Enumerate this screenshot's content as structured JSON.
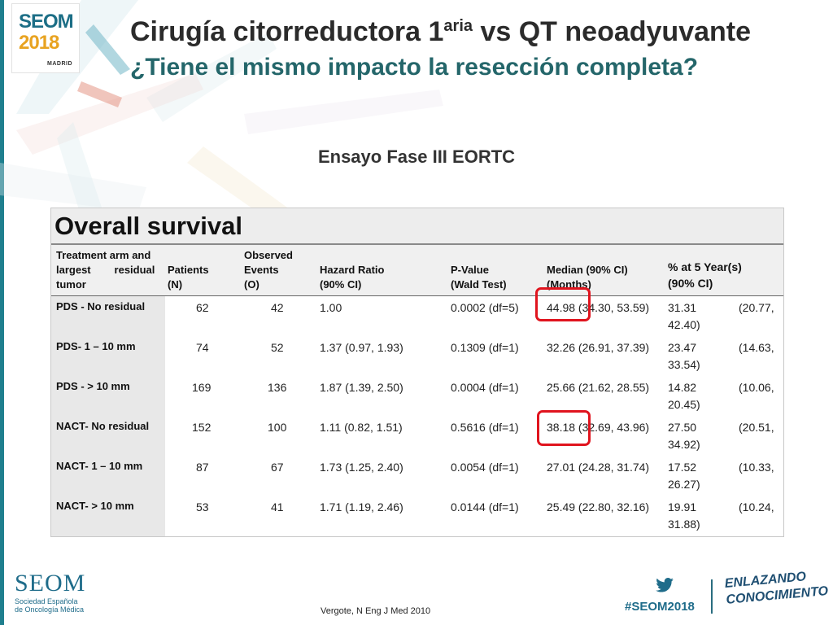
{
  "logo": {
    "name": "SEOM",
    "year": "2018",
    "city": "MADRID"
  },
  "header": {
    "title_main": "Cirugía citorreductora 1",
    "title_sup": "aria",
    "title_end": " vs QT neoadyuvante",
    "subtitle": "¿Tiene el mismo impacto la resección completa?"
  },
  "section_title": "Ensayo Fase III EORTC",
  "table": {
    "title": "Overall survival",
    "headers": {
      "treatment": [
        "Treatment  arm  and",
        "largest        residual",
        "tumor"
      ],
      "patients": [
        "Patients",
        "(N)"
      ],
      "events": [
        "Observed",
        "Events",
        "(O)"
      ],
      "hazard": [
        "Hazard Ratio",
        "(90% CI)"
      ],
      "pvalue": [
        "P-Value",
        "(Wald Test)"
      ],
      "median": [
        "Median (90% CI)",
        "(Months)"
      ],
      "five_year": [
        "% at 5 Year(s)",
        "(90% CI)"
      ]
    },
    "rows": [
      {
        "label": "PDS - No residual",
        "n": "62",
        "events": "42",
        "hr": "1.00",
        "p": "0.0002 (df=5)",
        "median": "44.98 (34.30, 53.59)",
        "pct": "31.31",
        "ci_a": "(20.77,",
        "ci_b": "42.40)"
      },
      {
        "label": "PDS-  1 – 10 mm",
        "n": "74",
        "events": "52",
        "hr": "1.37 (0.97, 1.93)",
        "p": "0.1309 (df=1)",
        "median": "32.26 (26.91, 37.39)",
        "pct": "23.47",
        "ci_a": "(14.63,",
        "ci_b": "33.54)"
      },
      {
        "label": "PDS - > 10 mm",
        "n": "169",
        "events": "136",
        "hr": "1.87 (1.39, 2.50)",
        "p": "0.0004 (df=1)",
        "median": "25.66 (21.62, 28.55)",
        "pct": "14.82",
        "ci_a": "(10.06,",
        "ci_b": "20.45)"
      },
      {
        "label": "NACT- No residual",
        "n": "152",
        "events": "100",
        "hr": "1.11 (0.82, 1.51)",
        "p": "0.5616 (df=1)",
        "median": "38.18 (32.69, 43.96)",
        "pct": "27.50",
        "ci_a": "(20.51,",
        "ci_b": "34.92)"
      },
      {
        "label": "NACT- 1 – 10 mm",
        "n": "87",
        "events": "67",
        "hr": "1.73 (1.25, 2.40)",
        "p": "0.0054 (df=1)",
        "median": "27.01 (24.28, 31.74)",
        "pct": "17.52",
        "ci_a": "(10.33,",
        "ci_b": "26.27)"
      },
      {
        "label": "NACT- > 10 mm",
        "n": "53",
        "events": "41",
        "hr": "1.71 (1.19, 2.46)",
        "p": "0.0144 (df=1)",
        "median": "25.49 (22.80, 32.16)",
        "pct": "19.91",
        "ci_a": "(10.24,",
        "ci_b": "31.88)"
      }
    ]
  },
  "footer": {
    "org_logo": "SEOM",
    "org_line1": "Sociedad Española",
    "org_line2": "de Oncología Médica",
    "reference": "Vergote, N Eng J Med 2010",
    "hashtag": "#SEOM2018",
    "slogan1": "ENLAZANDO",
    "slogan2": "CONOCIMIENTO"
  },
  "colors": {
    "accent": "#1f7f8e",
    "title_teal": "#24666a",
    "highlight": "#e0141e",
    "logo_gold": "#e8a321"
  }
}
